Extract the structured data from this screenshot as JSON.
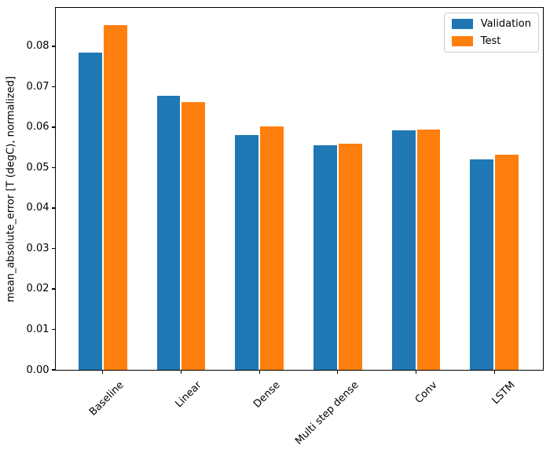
{
  "figure": {
    "background": "#ffffff"
  },
  "chart_data": {
    "type": "bar",
    "categories": [
      "Baseline",
      "Linear",
      "Dense",
      "Multi step dense",
      "Conv",
      "LSTM"
    ],
    "series": [
      {
        "name": "Validation",
        "color": "#1f77b4",
        "values": [
          0.0785,
          0.0677,
          0.058,
          0.0556,
          0.0592,
          0.0521
        ]
      },
      {
        "name": "Test",
        "color": "#ff7f0e",
        "values": [
          0.0852,
          0.0663,
          0.0601,
          0.056,
          0.0594,
          0.0532
        ]
      }
    ],
    "title": "",
    "xlabel": "",
    "ylabel": "mean_absolute_error [T (degC), normalized]",
    "ylim": [
      0,
      0.0895
    ],
    "xlim": [
      -0.6,
      5.62
    ],
    "yticks": [
      "0.00",
      "0.01",
      "0.02",
      "0.03",
      "0.04",
      "0.05",
      "0.06",
      "0.07",
      "0.08"
    ],
    "xtick_rotation": 45,
    "bar_width": 0.3,
    "bar_gap": 0.02,
    "grid": false,
    "legend": {
      "position": "upper right",
      "entries": [
        "Validation",
        "Test"
      ]
    }
  }
}
